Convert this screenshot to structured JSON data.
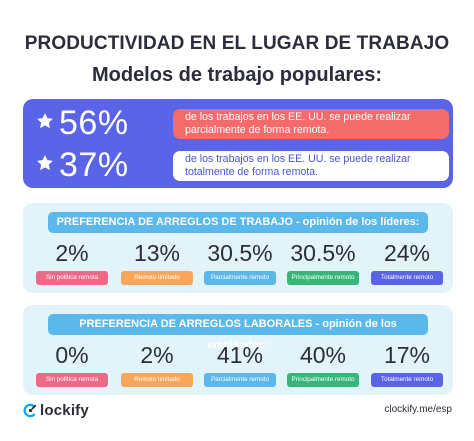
{
  "title": "PRODUCTIVIDAD EN EL LUGAR DE TRABAJO",
  "subtitle": "Modelos de trabajo populares:",
  "stats": [
    {
      "pct": "56%",
      "desc": "de los trabajos en los EE. UU. se puede realizar parcialmente de forma remota.",
      "box_color": "#f36b6b"
    },
    {
      "pct": "37%",
      "desc": "de los trabajos en los EE. UU. se puede realizar totalmente de forma remota.",
      "box_color": "#ffffff"
    }
  ],
  "leaders": {
    "header": "PREFERENCIA DE ARREGLOS DE TRABAJO - opinión de los líderes:",
    "items": [
      {
        "value": "2%",
        "label": "Sin política remota",
        "color": "#ec6a86"
      },
      {
        "value": "13%",
        "label": "Remoto limitado",
        "color": "#f7a65a"
      },
      {
        "value": "30.5%",
        "label": "Parcialmente remoto",
        "color": "#5bb8ea"
      },
      {
        "value": "30.5%",
        "label": "Principalmente remoto",
        "color": "#38b67a"
      },
      {
        "value": "24%",
        "label": "Totalmente remoto",
        "color": "#5a64e6"
      }
    ]
  },
  "employees": {
    "header": "PREFERENCIA DE ARREGLOS LABORALES - opinión de los empleados:",
    "items": [
      {
        "value": "0%",
        "label": "Sin política remota",
        "color": "#ec6a86"
      },
      {
        "value": "2%",
        "label": "Remoto limitado",
        "color": "#f7a65a"
      },
      {
        "value": "41%",
        "label": "Parcialmente remoto",
        "color": "#5bb8ea"
      },
      {
        "value": "40%",
        "label": "Principalmente remoto",
        "color": "#38b67a"
      },
      {
        "value": "17%",
        "label": "Totalmente remoto",
        "color": "#5a64e6"
      }
    ]
  },
  "footer": {
    "brand": "lockify",
    "url": "clockify.me/esp"
  },
  "colors": {
    "accent_blue": "#5a64e6",
    "light_panel": "#e2f3fa",
    "header_blue": "#5bb8ea"
  }
}
